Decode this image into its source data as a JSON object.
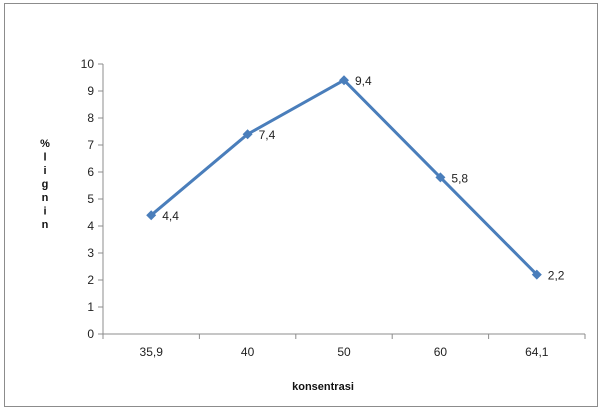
{
  "chart_data": {
    "type": "line",
    "categories": [
      "35,9",
      "40",
      "50",
      "60",
      "64,1"
    ],
    "values": [
      4.4,
      7.4,
      9.4,
      5.8,
      2.2
    ],
    "data_labels": [
      "4,4",
      "7,4",
      "9,4",
      "5,8",
      "2,2"
    ],
    "ylabel": "% l i g n i n",
    "xlabel": "konsentrasi",
    "ylim": [
      0,
      10
    ],
    "yticks": [
      "0",
      "1",
      "2",
      "3",
      "4",
      "5",
      "6",
      "7",
      "8",
      "9",
      "10"
    ],
    "grid": false,
    "legend": "none",
    "marker": "diamond",
    "line_color": "#4a7ebb",
    "axis_color": "#8c8c8c"
  }
}
